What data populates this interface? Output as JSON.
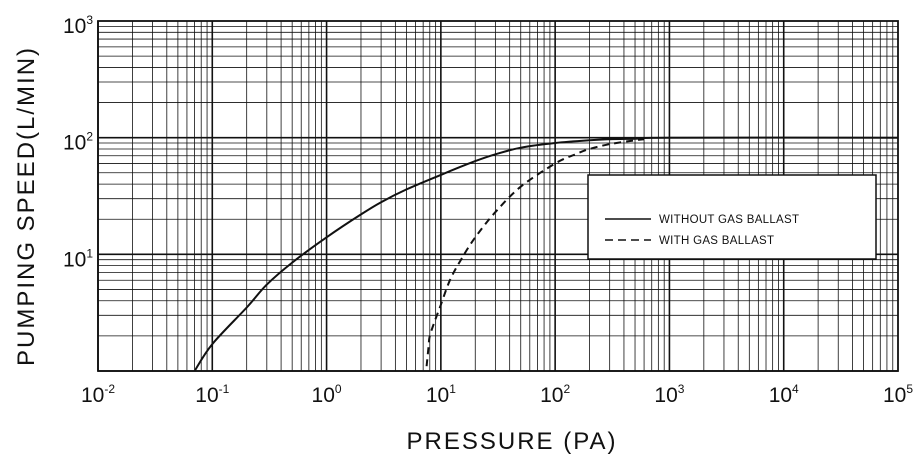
{
  "chart_data": {
    "type": "line",
    "x_scale": "log",
    "y_scale": "log",
    "xlim": [
      0.01,
      100000
    ],
    "ylim": [
      1,
      1000
    ],
    "grid": true,
    "xlabel": "PRESSURE (PA)",
    "ylabel": "PUMPING SPEED(L/MIN)",
    "x_ticks": [
      {
        "base": "10",
        "exp": "-2"
      },
      {
        "base": "10",
        "exp": "-1"
      },
      {
        "base": "10",
        "exp": "0"
      },
      {
        "base": "10",
        "exp": "1"
      },
      {
        "base": "10",
        "exp": "2"
      },
      {
        "base": "10",
        "exp": "3"
      },
      {
        "base": "10",
        "exp": "4"
      },
      {
        "base": "10",
        "exp": "5"
      }
    ],
    "y_ticks": [
      {
        "base": "10",
        "exp": "1"
      },
      {
        "base": "10",
        "exp": "2"
      },
      {
        "base": "10",
        "exp": "3"
      }
    ],
    "legend_position": "right",
    "series": [
      {
        "name": "WITHOUT GAS BALLAST",
        "style": "solid",
        "x": [
          0.07,
          0.1,
          0.2,
          0.3,
          0.5,
          1,
          2,
          3,
          5,
          10,
          20,
          30,
          50,
          100,
          200,
          300,
          500,
          1000,
          100000
        ],
        "y": [
          1,
          1.7,
          3.5,
          5.5,
          8.5,
          14,
          22,
          28,
          36,
          48,
          63,
          72,
          82,
          90,
          95,
          97,
          98,
          100,
          100
        ]
      },
      {
        "name": "WITH GAS BALLAST",
        "style": "dashed",
        "x": [
          7.5,
          7.8,
          8,
          9,
          10,
          12,
          15,
          20,
          30,
          50,
          100,
          150,
          200,
          300,
          500,
          600
        ],
        "y": [
          1.1,
          1.6,
          2,
          2.8,
          3.7,
          6,
          9,
          14,
          23,
          38,
          60,
          72,
          80,
          88,
          95,
          97
        ]
      }
    ]
  }
}
